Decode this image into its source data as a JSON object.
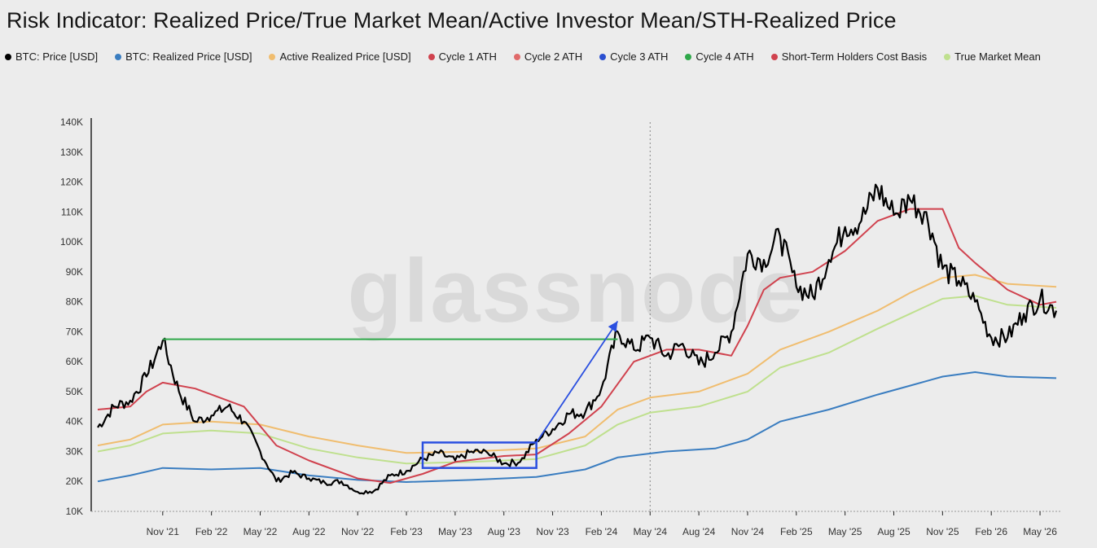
{
  "title": "Risk Indicator: Realized Price/True Market Mean/Active Investor Mean/STH-Realized Price",
  "watermark": "glassnode",
  "colors": {
    "background": "#ececec",
    "price": "#000000",
    "realized": "#3a7dc0",
    "active": "#f0bd6f",
    "sth": "#d0424e",
    "tmm": "#bfe08e",
    "cycle1": "#d0424e",
    "cycle2": "#e06a6a",
    "cycle3": "#2a4fd0",
    "cycle4": "#2fa84a",
    "annotation_arrow": "#2a4fe0",
    "annotation_box": "#2a4fe0",
    "annotation_line": "#2fa84a"
  },
  "legend": [
    {
      "label": "BTC: Price [USD]",
      "color": "#000000"
    },
    {
      "label": "BTC: Realized Price [USD]",
      "color": "#3a7dc0"
    },
    {
      "label": "Active Realized Price [USD]",
      "color": "#f0bd6f"
    },
    {
      "label": "Cycle 1 ATH",
      "color": "#d0424e"
    },
    {
      "label": "Cycle 2 ATH",
      "color": "#e06a6a"
    },
    {
      "label": "Cycle 3 ATH",
      "color": "#2a4fd0"
    },
    {
      "label": "Cycle 4 ATH",
      "color": "#2fa84a"
    },
    {
      "label": "Short-Term Holders Cost Basis",
      "color": "#d0424e"
    },
    {
      "label": "True Market Mean",
      "color": "#bfe08e"
    }
  ],
  "chart_data": {
    "type": "line",
    "x_start": "2021-07",
    "x_end": "2026-06",
    "x_ticks": [
      "Nov '21",
      "Feb '22",
      "May '22",
      "Aug '22",
      "Nov '22",
      "Feb '23",
      "May '23",
      "Aug '23",
      "Nov '23",
      "Feb '24",
      "May '24",
      "Aug '24",
      "Nov '24",
      "Feb '25",
      "May '25",
      "Aug '25",
      "Nov '25",
      "Feb '26",
      "May '26"
    ],
    "y_ticks": [
      "10K",
      "20K",
      "30K",
      "40K",
      "50K",
      "60K",
      "70K",
      "80K",
      "90K",
      "100K",
      "110K",
      "120K",
      "130K",
      "140K"
    ],
    "ylim": [
      10000,
      140000
    ],
    "log_scale": false,
    "grid": false,
    "vertical_marker": "2024-05",
    "series": [
      {
        "name": "BTC: Price [USD]",
        "color": "#000000",
        "width": 2.2,
        "points": [
          [
            "2021-07",
            38000
          ],
          [
            "2021-08",
            45000
          ],
          [
            "2021-09",
            47000
          ],
          [
            "2021-10",
            55000
          ],
          [
            "2021-11",
            67000
          ],
          [
            "2021-12",
            50000
          ],
          [
            "2022-01",
            40000
          ],
          [
            "2022-02",
            42000
          ],
          [
            "2022-03",
            45000
          ],
          [
            "2022-04",
            40000
          ],
          [
            "2022-05",
            30000
          ],
          [
            "2022-06",
            20000
          ],
          [
            "2022-07",
            23000
          ],
          [
            "2022-08",
            21000
          ],
          [
            "2022-09",
            19500
          ],
          [
            "2022-10",
            20000
          ],
          [
            "2022-11",
            16500
          ],
          [
            "2022-12",
            16800
          ],
          [
            "2023-01",
            22000
          ],
          [
            "2023-02",
            23500
          ],
          [
            "2023-03",
            27500
          ],
          [
            "2023-04",
            29500
          ],
          [
            "2023-05",
            27000
          ],
          [
            "2023-06",
            30000
          ],
          [
            "2023-07",
            29500
          ],
          [
            "2023-08",
            26000
          ],
          [
            "2023-09",
            26500
          ],
          [
            "2023-10",
            34000
          ],
          [
            "2023-11",
            37500
          ],
          [
            "2023-12",
            42500
          ],
          [
            "2024-01",
            43000
          ],
          [
            "2024-02",
            51000
          ],
          [
            "2024-03",
            70000
          ],
          [
            "2024-04",
            64000
          ],
          [
            "2024-05",
            68000
          ],
          [
            "2024-06",
            62000
          ],
          [
            "2024-07",
            66000
          ],
          [
            "2024-08",
            59000
          ],
          [
            "2024-09",
            63000
          ],
          [
            "2024-10",
            70000
          ],
          [
            "2024-11",
            96000
          ],
          [
            "2024-12",
            94000
          ],
          [
            "2025-01",
            102000
          ],
          [
            "2025-02",
            85000
          ],
          [
            "2025-03",
            82000
          ],
          [
            "2025-04",
            94000
          ],
          [
            "2025-05",
            105000
          ],
          [
            "2025-06",
            107000
          ],
          [
            "2025-07",
            118000
          ],
          [
            "2025-08",
            109000
          ],
          [
            "2025-09",
            114000
          ],
          [
            "2025-10",
            110000
          ],
          [
            "2025-11",
            91000
          ],
          [
            "2025-12",
            87000
          ],
          [
            "2026-01",
            80000
          ],
          [
            "2026-02",
            68000
          ],
          [
            "2026-03",
            68000
          ],
          [
            "2026-04",
            76000
          ],
          [
            "2026-05",
            81000
          ],
          [
            "2026-06",
            77000
          ]
        ]
      },
      {
        "name": "Short-Term Holders Cost Basis",
        "color": "#d0424e",
        "width": 2,
        "points": [
          [
            "2021-07",
            44000
          ],
          [
            "2021-09",
            45000
          ],
          [
            "2021-10",
            50000
          ],
          [
            "2021-11",
            53000
          ],
          [
            "2022-01",
            51000
          ],
          [
            "2022-04",
            45000
          ],
          [
            "2022-06",
            32000
          ],
          [
            "2022-08",
            27000
          ],
          [
            "2022-11",
            21000
          ],
          [
            "2023-01",
            19500
          ],
          [
            "2023-03",
            22500
          ],
          [
            "2023-05",
            26500
          ],
          [
            "2023-08",
            28500
          ],
          [
            "2023-10",
            29000
          ],
          [
            "2023-12",
            36000
          ],
          [
            "2024-02",
            45000
          ],
          [
            "2024-04",
            60000
          ],
          [
            "2024-06",
            64000
          ],
          [
            "2024-08",
            64000
          ],
          [
            "2024-10",
            62000
          ],
          [
            "2024-11",
            72000
          ],
          [
            "2024-12",
            84000
          ],
          [
            "2025-01",
            88000
          ],
          [
            "2025-03",
            90000
          ],
          [
            "2025-05",
            97000
          ],
          [
            "2025-07",
            107000
          ],
          [
            "2025-09",
            111000
          ],
          [
            "2025-11",
            111000
          ],
          [
            "2025-12",
            98000
          ],
          [
            "2026-01",
            93000
          ],
          [
            "2026-03",
            84000
          ],
          [
            "2026-05",
            79000
          ],
          [
            "2026-06",
            80000
          ]
        ]
      },
      {
        "name": "Active Realized Price [USD]",
        "color": "#f0bd6f",
        "width": 2,
        "points": [
          [
            "2021-07",
            32000
          ],
          [
            "2021-09",
            34000
          ],
          [
            "2021-11",
            39000
          ],
          [
            "2022-02",
            40000
          ],
          [
            "2022-05",
            39000
          ],
          [
            "2022-08",
            35000
          ],
          [
            "2022-11",
            32000
          ],
          [
            "2023-02",
            29500
          ],
          [
            "2023-06",
            30000
          ],
          [
            "2023-10",
            31000
          ],
          [
            "2024-01",
            35000
          ],
          [
            "2024-03",
            44000
          ],
          [
            "2024-05",
            48000
          ],
          [
            "2024-08",
            50000
          ],
          [
            "2024-11",
            56000
          ],
          [
            "2025-01",
            64000
          ],
          [
            "2025-04",
            70000
          ],
          [
            "2025-07",
            77000
          ],
          [
            "2025-09",
            83000
          ],
          [
            "2025-11",
            88000
          ],
          [
            "2026-01",
            89000
          ],
          [
            "2026-03",
            86000
          ],
          [
            "2026-06",
            85000
          ]
        ]
      },
      {
        "name": "True Market Mean",
        "color": "#bfe08e",
        "width": 2,
        "points": [
          [
            "2021-07",
            30000
          ],
          [
            "2021-09",
            32000
          ],
          [
            "2021-11",
            36000
          ],
          [
            "2022-02",
            37000
          ],
          [
            "2022-05",
            36000
          ],
          [
            "2022-08",
            31000
          ],
          [
            "2022-11",
            28000
          ],
          [
            "2023-02",
            26000
          ],
          [
            "2023-06",
            26500
          ],
          [
            "2023-10",
            27500
          ],
          [
            "2024-01",
            32000
          ],
          [
            "2024-03",
            39000
          ],
          [
            "2024-05",
            43000
          ],
          [
            "2024-08",
            45000
          ],
          [
            "2024-11",
            50000
          ],
          [
            "2025-01",
            58000
          ],
          [
            "2025-04",
            63000
          ],
          [
            "2025-07",
            71000
          ],
          [
            "2025-09",
            76000
          ],
          [
            "2025-11",
            81000
          ],
          [
            "2026-01",
            82000
          ],
          [
            "2026-03",
            79000
          ],
          [
            "2026-06",
            78000
          ]
        ]
      },
      {
        "name": "BTC: Realized Price [USD]",
        "color": "#3a7dc0",
        "width": 2,
        "points": [
          [
            "2021-07",
            20000
          ],
          [
            "2021-09",
            22000
          ],
          [
            "2021-11",
            24500
          ],
          [
            "2022-02",
            24000
          ],
          [
            "2022-05",
            24500
          ],
          [
            "2022-08",
            22000
          ],
          [
            "2022-11",
            20500
          ],
          [
            "2023-02",
            19800
          ],
          [
            "2023-06",
            20500
          ],
          [
            "2023-10",
            21500
          ],
          [
            "2024-01",
            24000
          ],
          [
            "2024-03",
            28000
          ],
          [
            "2024-06",
            30000
          ],
          [
            "2024-09",
            31000
          ],
          [
            "2024-11",
            34000
          ],
          [
            "2025-01",
            40000
          ],
          [
            "2025-04",
            44000
          ],
          [
            "2025-07",
            49000
          ],
          [
            "2025-09",
            52000
          ],
          [
            "2025-11",
            55000
          ],
          [
            "2026-01",
            56500
          ],
          [
            "2026-03",
            55000
          ],
          [
            "2026-06",
            54500
          ]
        ]
      }
    ],
    "annotations": [
      {
        "kind": "hline",
        "color": "#2fa84a",
        "from": "2021-11",
        "to": "2024-03",
        "value": 67500
      },
      {
        "kind": "box",
        "color": "#2a4fe0",
        "from": "2023-03",
        "to": "2023-10",
        "ymin": 24500,
        "ymax": 33000
      },
      {
        "kind": "arrow",
        "color": "#2a4fe0",
        "from": [
          "2023-10",
          33000
        ],
        "to": [
          "2024-03",
          73500
        ]
      }
    ]
  }
}
